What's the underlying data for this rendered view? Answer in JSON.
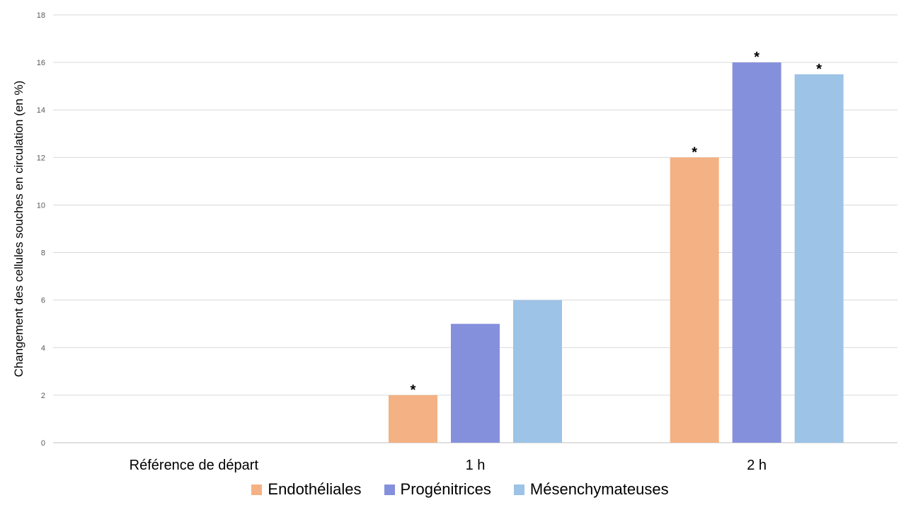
{
  "chart_data": {
    "type": "bar",
    "title": "",
    "xlabel": "",
    "ylabel": "Changement des cellules souches en circulation  (en %)",
    "ylim": [
      0,
      18
    ],
    "yticks": [
      0,
      2,
      4,
      6,
      8,
      10,
      12,
      14,
      16,
      18
    ],
    "grid": true,
    "legend_position": "bottom",
    "categories": [
      "Référence de départ",
      "1 h",
      "2 h"
    ],
    "series": [
      {
        "name": "Endothéliales",
        "color": "#F4B183",
        "values": [
          0,
          2,
          12
        ],
        "significance": [
          "",
          "*",
          "*"
        ]
      },
      {
        "name": "Progénitrices",
        "color": "#8590DC",
        "values": [
          0,
          5,
          16
        ],
        "significance": [
          "",
          "",
          "*"
        ]
      },
      {
        "name": "Mésenchymateuses",
        "color": "#9DC3E6",
        "values": [
          0,
          6,
          15.5
        ],
        "significance": [
          "",
          "",
          "*"
        ]
      }
    ]
  }
}
